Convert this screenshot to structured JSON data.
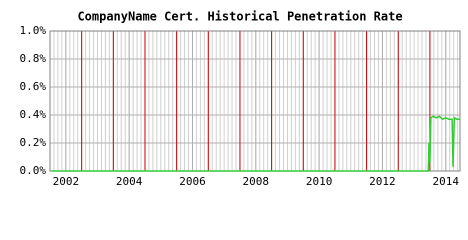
{
  "chart_data": {
    "type": "line",
    "title": "CompanyName Cert. Historical Penetration Rate",
    "x": [
      2001.55,
      2013.45,
      2013.47,
      2013.5,
      2013.53,
      2013.6,
      2013.7,
      2013.8,
      2013.9,
      2014.0,
      2014.1,
      2014.2,
      2014.23,
      2014.27,
      2014.35,
      2014.45
    ],
    "series": [
      {
        "color": "#33cc33",
        "values": [
          0,
          0,
          0.2,
          0.06,
          0.38,
          0.39,
          0.38,
          0.39,
          0.37,
          0.38,
          0.37,
          0.37,
          0.03,
          0.38,
          0.37,
          0.37
        ]
      }
    ],
    "xlim": [
      2001.5,
      2014.45
    ],
    "xticks": [
      2002,
      2004,
      2006,
      2008,
      2010,
      2012,
      2014
    ],
    "ylim": [
      0,
      1
    ],
    "yticks": [
      {
        "value": 0,
        "label": "0.0%"
      },
      {
        "value": 0.2,
        "label": "0.2%"
      },
      {
        "value": 0.4,
        "label": "0.4%"
      },
      {
        "value": 0.6,
        "label": "0.6%"
      },
      {
        "value": 0.8,
        "label": "0.8%"
      },
      {
        "value": 1,
        "label": "1.0%"
      }
    ],
    "grid": true,
    "vlines": [
      2002.5,
      2003.5,
      2004.5,
      2005.5,
      2006.5,
      2007.5,
      2008.5,
      2009.5,
      2010.5,
      2011.5,
      2012.5,
      2013.5
    ],
    "vline_color": "#cc0000"
  }
}
